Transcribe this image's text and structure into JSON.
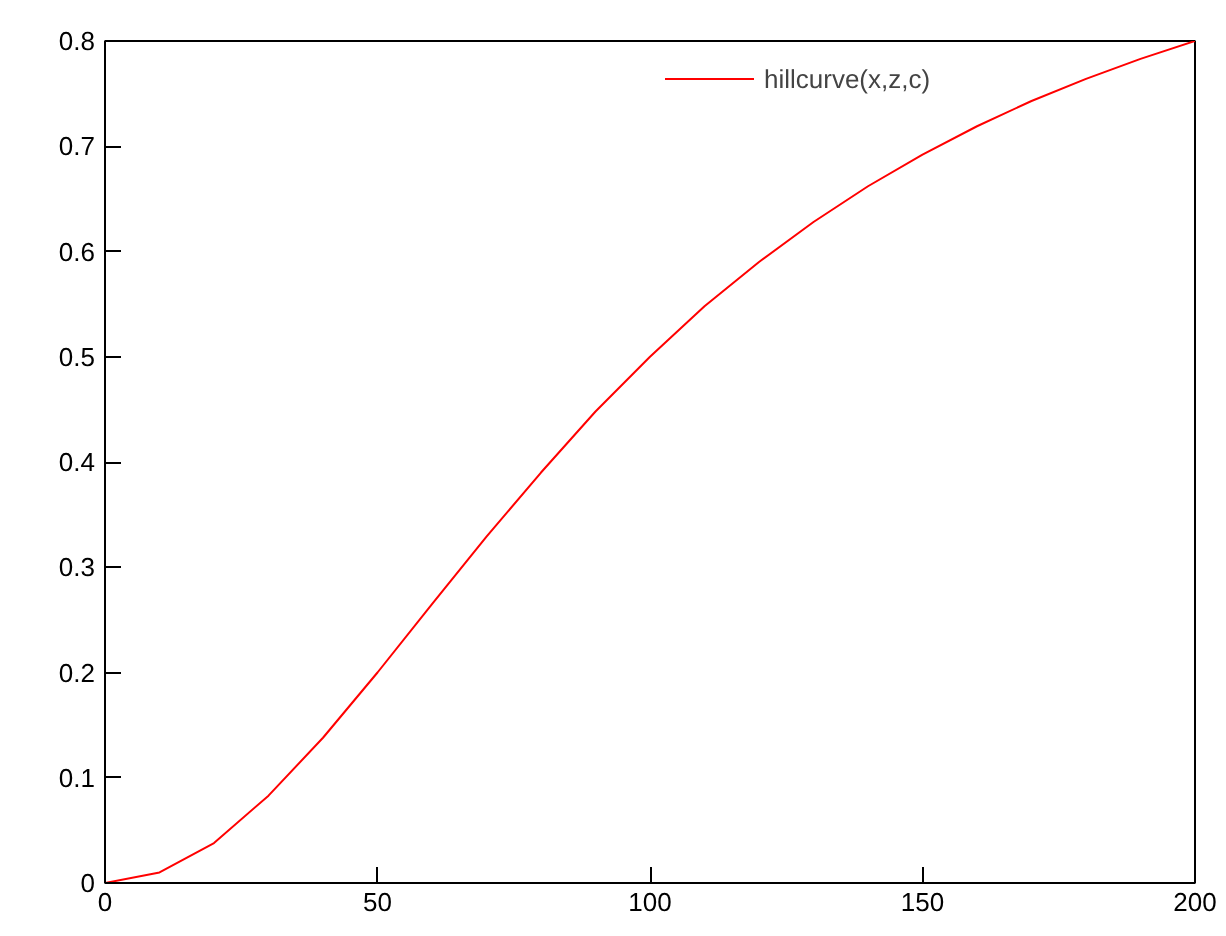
{
  "chart_data": {
    "type": "line",
    "x": [
      0,
      10,
      20,
      30,
      40,
      50,
      60,
      70,
      80,
      90,
      100,
      110,
      120,
      130,
      140,
      150,
      160,
      170,
      180,
      190,
      200
    ],
    "series": [
      {
        "name": "hillcurve(x,z,c)",
        "color": "#ff0000",
        "values": [
          0,
          0.01,
          0.038,
          0.083,
          0.138,
          0.2,
          0.265,
          0.329,
          0.39,
          0.448,
          0.5,
          0.548,
          0.59,
          0.628,
          0.662,
          0.692,
          0.719,
          0.743,
          0.764,
          0.783,
          0.8
        ]
      }
    ],
    "xlim": [
      0,
      200
    ],
    "ylim": [
      0,
      0.8
    ],
    "xticks": [
      0,
      50,
      100,
      150,
      200
    ],
    "yticks": [
      0,
      0.1,
      0.2,
      0.3,
      0.4,
      0.5,
      0.6,
      0.7,
      0.8
    ],
    "grid": false,
    "legend": "top right"
  }
}
